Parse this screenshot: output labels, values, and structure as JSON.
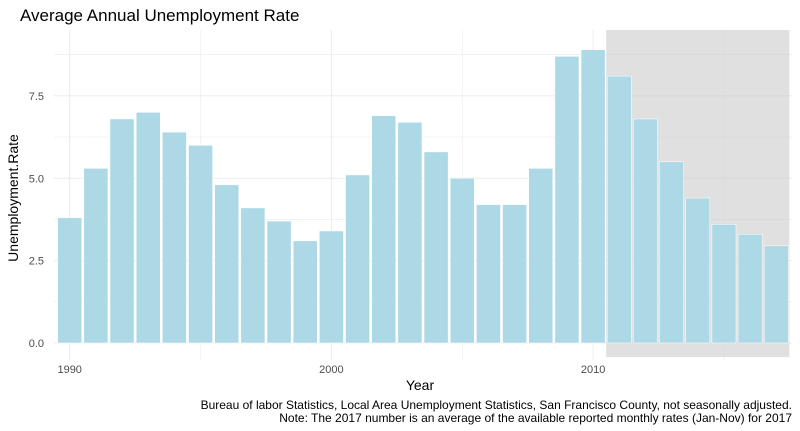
{
  "chart_data": {
    "type": "bar",
    "title": "Average Annual Unemployment Rate",
    "xlabel": "Year",
    "ylabel": "Unemployment.Rate",
    "x": [
      1990,
      1991,
      1992,
      1993,
      1994,
      1995,
      1996,
      1997,
      1998,
      1999,
      2000,
      2001,
      2002,
      2003,
      2004,
      2005,
      2006,
      2007,
      2008,
      2009,
      2010,
      2011,
      2012,
      2013,
      2014,
      2015,
      2016,
      2017
    ],
    "values": [
      3.8,
      5.3,
      6.8,
      7.0,
      6.4,
      6.0,
      4.8,
      4.1,
      3.7,
      3.1,
      3.4,
      5.1,
      6.9,
      6.7,
      5.8,
      5.0,
      4.2,
      4.2,
      5.3,
      8.7,
      8.9,
      8.1,
      6.8,
      5.5,
      4.4,
      3.6,
      3.3,
      2.95
    ],
    "ylim": [
      0,
      9.5
    ],
    "xlim": [
      1989.4,
      2017.6
    ],
    "y_ticks": [
      "0.0",
      "2.5",
      "5.0",
      "7.5"
    ],
    "y_tick_values": [
      0,
      2.5,
      5.0,
      7.5
    ],
    "x_ticks": [
      "1990",
      "2000",
      "2010"
    ],
    "x_tick_values": [
      1990,
      2000,
      2010
    ],
    "shaded_region": {
      "from": 2010.5,
      "to": 2017.5
    },
    "colors": {
      "bar_fill": "#add8e6",
      "bar_edge": "#ffffff",
      "grid": "#ebebeb",
      "shade": "#cccccc"
    },
    "grid": true,
    "caption": [
      "Bureau of labor Statistics, Local Area Unemployment Statistics, San Francisco County, not seasonally adjusted.",
      "Note: The 2017 number is an average of the available reported monthly rates (Jan-Nov) for 2017"
    ]
  }
}
